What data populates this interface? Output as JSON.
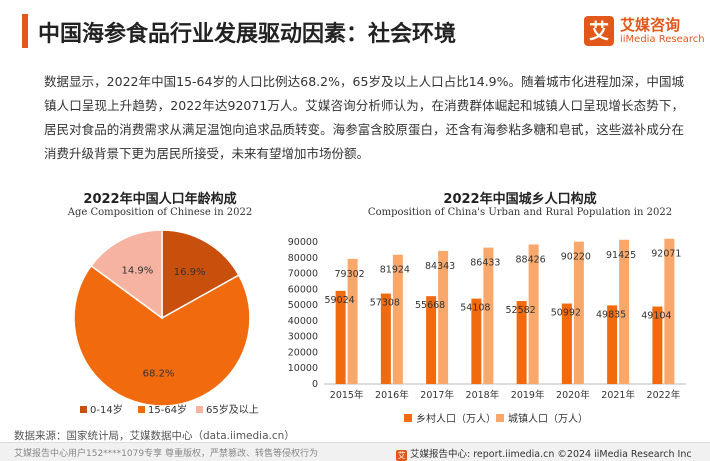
{
  "header": {
    "title": "中国海参食品行业发展驱动因素：社会环境",
    "logo_icon": "艾",
    "logo_cn": "艾媒咨询",
    "logo_en": "iiMedia Research"
  },
  "paragraph": "数据显示，2022年中国15-64岁的人口比例达68.2%，65岁及以上人口占比14.9%。随着城市化进程加深，中国城镇人口呈现上升趋势，2022年达92071万人。艾媒咨询分析师认为，在消费群体崛起和城镇人口呈现增长态势下，居民对食品的消费需求从满足温饱向追求品质转变。海参富含胶原蛋白，还含有海参粘多糖和皂甙，这些滋补成分在消费升级背景下更为居民所接受，未来有望增加市场份额。",
  "colors": {
    "accent": "#e2581b",
    "dark_orange": "#c84f0c",
    "orange": "#f26a0e",
    "light_orange": "#f9a76a",
    "pink": "#f7b3a1"
  },
  "chart_data": [
    {
      "type": "pie",
      "title": "2022年中国人口年龄构成",
      "subtitle": "Age Composition of Chinese in 2022",
      "categories": [
        "0-14岁",
        "15-64岁",
        "65岁及以上"
      ],
      "values": [
        16.9,
        68.2,
        14.9
      ],
      "labels": [
        "16.9%",
        "68.2%",
        "14.9%"
      ],
      "colors": [
        "#c84f0c",
        "#f26a0e",
        "#f7b3a1"
      ],
      "legend": "bottom"
    },
    {
      "type": "bar",
      "title": "2022年中国城乡人口构成",
      "subtitle": "Composition of China's Urban and Rural Population in 2022",
      "categories": [
        "2015年",
        "2016年",
        "2017年",
        "2018年",
        "2019年",
        "2020年",
        "2021年",
        "2022年"
      ],
      "series": [
        {
          "name": "乡村人口（万人）",
          "values": [
            59024,
            57308,
            55668,
            54108,
            52582,
            50992,
            49835,
            49104
          ],
          "color": "#f26a0e"
        },
        {
          "name": "城镇人口（万人）",
          "values": [
            79302,
            81924,
            84343,
            86433,
            88426,
            90220,
            91425,
            92071
          ],
          "color": "#f9a76a"
        }
      ],
      "yticks": [
        0,
        10000,
        20000,
        30000,
        40000,
        50000,
        60000,
        70000,
        80000,
        90000
      ],
      "ylim": [
        0,
        90000
      ],
      "grid": false,
      "legend": "bottom"
    }
  ],
  "source": "数据来源：国家统计局，艾媒数据中心（data.iimedia.cn）",
  "footer": {
    "left": "艾媒报告中心用户152****1079专享 尊重版权，严禁篡改、转售等侵权行为",
    "right_logo": "艾",
    "right": "艾媒报告中心: report.iimedia.cn   ©2024  iiMedia Research  Inc"
  }
}
